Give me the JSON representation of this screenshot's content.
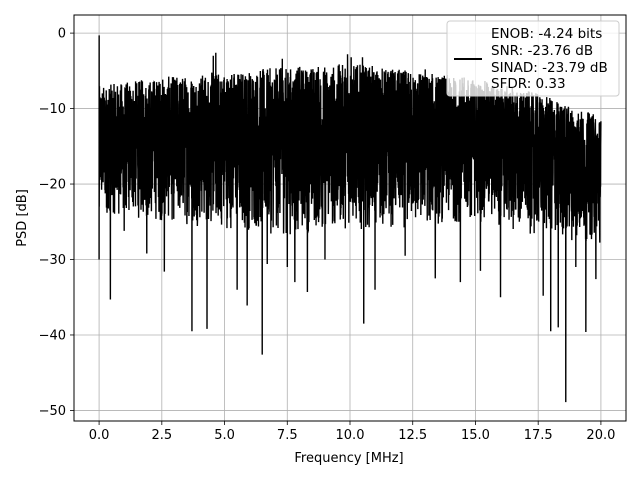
{
  "chart_data": {
    "type": "line",
    "title": "",
    "xlabel": "Frequency [MHz]",
    "ylabel": "PSD [dB]",
    "xlim": [
      -1.0,
      21.0
    ],
    "ylim": [
      -51.4,
      2.4
    ],
    "grid": true,
    "x_ticks": [
      0.0,
      2.5,
      5.0,
      7.5,
      10.0,
      12.5,
      15.0,
      17.5,
      20.0
    ],
    "x_tick_labels": [
      "0.0",
      "2.5",
      "5.0",
      "7.5",
      "10.0",
      "12.5",
      "15.0",
      "17.5",
      "20.0"
    ],
    "y_ticks": [
      0,
      -10,
      -20,
      -30,
      -40,
      -50
    ],
    "y_tick_labels": [
      "0",
      "−10",
      "−20",
      "−30",
      "−40",
      "−50"
    ],
    "legend": {
      "placement": "upper-right",
      "entries": [
        {
          "line_color": "#000000",
          "lines": [
            "ENOB: -4.24 bits",
            "SNR: -23.76 dB",
            "SINAD: -23.79 dB",
            "SFDR: 0.33"
          ]
        }
      ]
    },
    "series": [
      {
        "color": "#000000",
        "x_range": [
          0.0,
          20.0
        ],
        "num_points": 4000,
        "peak": {
          "x": 0.0,
          "y": -0.3
        },
        "noise_floor_envelope": {
          "x": [
            0.0,
            2.0,
            5.0,
            7.5,
            10.0,
            12.5,
            15.0,
            17.5,
            20.0
          ],
          "upper": [
            -7,
            -6,
            -5,
            -4.5,
            -4,
            -5,
            -6,
            -8,
            -11
          ],
          "lower": [
            -24,
            -25,
            -26,
            -27,
            -26,
            -26,
            -25,
            -27,
            -28
          ]
        },
        "notches": [
          {
            "x": 0.45,
            "y": -35.3
          },
          {
            "x": 1.0,
            "y": -26.2
          },
          {
            "x": 1.9,
            "y": -29.2
          },
          {
            "x": 2.6,
            "y": -31.6
          },
          {
            "x": 3.7,
            "y": -39.5
          },
          {
            "x": 4.3,
            "y": -39.2
          },
          {
            "x": 5.5,
            "y": -34.0
          },
          {
            "x": 5.9,
            "y": -36.1
          },
          {
            "x": 6.5,
            "y": -42.6
          },
          {
            "x": 6.7,
            "y": -30.6
          },
          {
            "x": 7.5,
            "y": -31.0
          },
          {
            "x": 7.8,
            "y": -33.0
          },
          {
            "x": 8.3,
            "y": -34.3
          },
          {
            "x": 9.0,
            "y": -30.0
          },
          {
            "x": 10.55,
            "y": -38.5
          },
          {
            "x": 11.0,
            "y": -34.0
          },
          {
            "x": 12.2,
            "y": -29.5
          },
          {
            "x": 13.4,
            "y": -32.5
          },
          {
            "x": 14.4,
            "y": -33.0
          },
          {
            "x": 15.2,
            "y": -31.5
          },
          {
            "x": 16.0,
            "y": -35.0
          },
          {
            "x": 17.7,
            "y": -34.8
          },
          {
            "x": 18.0,
            "y": -39.5
          },
          {
            "x": 18.3,
            "y": -39.0
          },
          {
            "x": 18.6,
            "y": -48.9
          },
          {
            "x": 19.0,
            "y": -31.0
          },
          {
            "x": 19.4,
            "y": -39.6
          },
          {
            "x": 19.8,
            "y": -32.6
          }
        ],
        "spikes": [
          {
            "x": 4.55,
            "y": -3.0
          },
          {
            "x": 4.65,
            "y": -2.6
          },
          {
            "x": 7.3,
            "y": -3.4
          },
          {
            "x": 9.9,
            "y": -2.8
          },
          {
            "x": 10.05,
            "y": -3.2
          },
          {
            "x": 10.5,
            "y": -3.2
          },
          {
            "x": 13.0,
            "y": -4.8
          }
        ]
      }
    ]
  }
}
